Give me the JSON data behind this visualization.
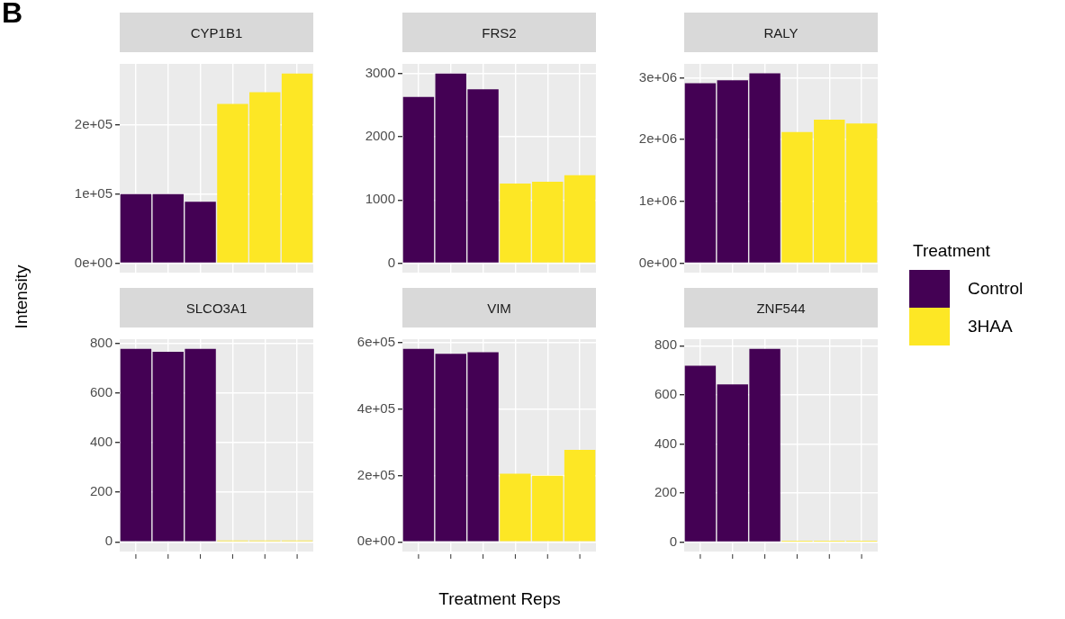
{
  "chart_data": [
    {
      "type": "bar",
      "title": "CYP1B1",
      "ylabel": "Intensity",
      "annotations": [
        "B"
      ],
      "legend": "right",
      "legend_title": "Treatment",
      "categories": [
        null,
        null,
        null,
        null,
        null,
        null
      ],
      "ylim": [
        -13800,
        289000
      ],
      "yticks": [
        {
          "value": 0,
          "label": "0e+00"
        },
        {
          "value": 100000,
          "label": "1e+05"
        },
        {
          "value": 200000,
          "label": "2e+05"
        }
      ],
      "grid": true,
      "tick_labels": "y",
      "series": [
        {
          "name": "Control",
          "color": "#440154",
          "values": [
            100000,
            100000,
            89000,
            null,
            null,
            null
          ]
        },
        {
          "name": "3HAA",
          "color": "#fde725",
          "values": [
            null,
            null,
            null,
            231000,
            248000,
            275000
          ]
        }
      ]
    },
    {
      "type": "bar",
      "title": "FRS2",
      "categories": [
        null,
        null,
        null,
        null,
        null,
        null
      ],
      "ylim": [
        -150,
        3154
      ],
      "yticks": [
        0,
        1000,
        2000,
        3000
      ],
      "grid": true,
      "tick_labels": "y",
      "series": [
        {
          "color": "#440154",
          "values": [
            2630,
            3000,
            2750,
            null,
            null,
            null
          ]
        },
        {
          "color": "#fde725",
          "values": [
            null,
            null,
            null,
            1260,
            1290,
            1390
          ]
        }
      ]
    },
    {
      "type": "bar",
      "title": "RALY",
      "categories": [
        null,
        null,
        null,
        null,
        null,
        null
      ],
      "ylim": [
        -154000,
        3224000
      ],
      "yticks": [
        {
          "value": 0,
          "label": "0e+00"
        },
        {
          "value": 1000000,
          "label": "1e+06"
        },
        {
          "value": 2000000,
          "label": "2e+06"
        },
        {
          "value": 3000000,
          "label": "3e+06"
        }
      ],
      "grid": true,
      "tick_labels": "y",
      "series": [
        {
          "color": "#440154",
          "values": [
            2910000,
            2960000,
            3070000,
            null,
            null,
            null
          ]
        },
        {
          "color": "#fde725",
          "values": [
            null,
            null,
            null,
            2120000,
            2320000,
            2260000
          ]
        }
      ]
    },
    {
      "type": "bar",
      "title": "SLCO3A1",
      "categories": [
        null,
        null,
        null,
        null,
        null,
        null
      ],
      "ylim": [
        -39,
        816
      ],
      "yticks": [
        0,
        200,
        400,
        600,
        800
      ],
      "grid": true,
      "tick_labels": "y",
      "series": [
        {
          "color": "#440154",
          "values": [
            777,
            765,
            777,
            null,
            null,
            null
          ]
        },
        {
          "color": "#fde725",
          "values": [
            null,
            null,
            null,
            5,
            5,
            5
          ]
        }
      ]
    },
    {
      "type": "bar",
      "title": "VIM",
      "xlabel": "Treatment Reps",
      "categories": [
        null,
        null,
        null,
        null,
        null,
        null
      ],
      "ylim": [
        -29000,
        610000
      ],
      "yticks": [
        {
          "value": 0,
          "label": "0e+00"
        },
        {
          "value": 200000,
          "label": "2e+05"
        },
        {
          "value": 400000,
          "label": "4e+05"
        },
        {
          "value": 600000,
          "label": "6e+05"
        }
      ],
      "grid": true,
      "tick_labels": "y",
      "series": [
        {
          "color": "#440154",
          "values": [
            581000,
            566000,
            571000,
            null,
            null,
            null
          ]
        },
        {
          "color": "#fde725",
          "values": [
            null,
            null,
            null,
            205000,
            199000,
            277000
          ]
        }
      ]
    },
    {
      "type": "bar",
      "title": "ZNF544",
      "categories": [
        null,
        null,
        null,
        null,
        null,
        null
      ],
      "ylim": [
        -39,
        827
      ],
      "yticks": [
        0,
        200,
        400,
        600,
        800
      ],
      "grid": true,
      "tick_labels": "y",
      "series": [
        {
          "color": "#440154",
          "values": [
            719,
            643,
            788,
            null,
            null,
            null
          ]
        },
        {
          "color": "#fde725",
          "values": [
            null,
            null,
            null,
            5,
            5,
            5
          ]
        }
      ]
    }
  ]
}
